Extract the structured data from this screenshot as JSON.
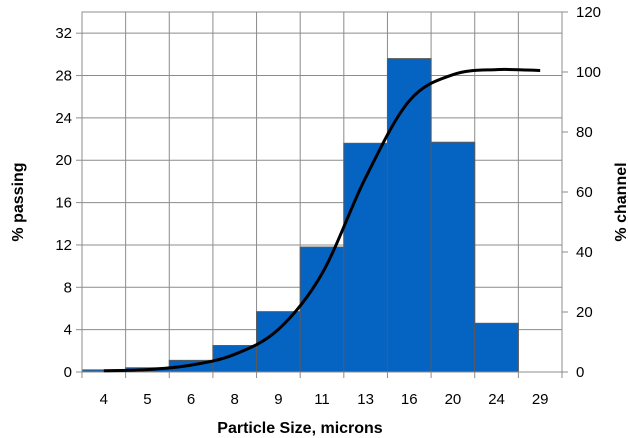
{
  "chart_data": {
    "type": "bar",
    "categories": [
      "4",
      "5",
      "6",
      "8",
      "9",
      "11",
      "13",
      "16",
      "20",
      "24",
      "29"
    ],
    "series": [
      {
        "type": "bar",
        "axis": "left",
        "color": "#0563C1",
        "values": [
          0.2,
          0.4,
          1.1,
          2.5,
          5.7,
          11.8,
          21.6,
          29.6,
          21.7,
          4.6,
          0
        ]
      },
      {
        "type": "line",
        "axis": "right",
        "color": "#000000",
        "values": [
          0.4,
          0.8,
          2.3,
          5.9,
          14.2,
          32.8,
          64.8,
          90.4,
          99.1,
          100.8,
          100.5
        ]
      }
    ],
    "xlabel": "Particle Size, microns",
    "ylabel": "% passing",
    "y2label": "% channel",
    "ylim": [
      0,
      34
    ],
    "y2lim": [
      0,
      120
    ],
    "yticks": [
      0,
      4,
      8,
      12,
      16,
      20,
      24,
      28,
      32
    ],
    "y2ticks": [
      0,
      20,
      40,
      60,
      80,
      100,
      120
    ],
    "grid": true,
    "legend": "none"
  }
}
